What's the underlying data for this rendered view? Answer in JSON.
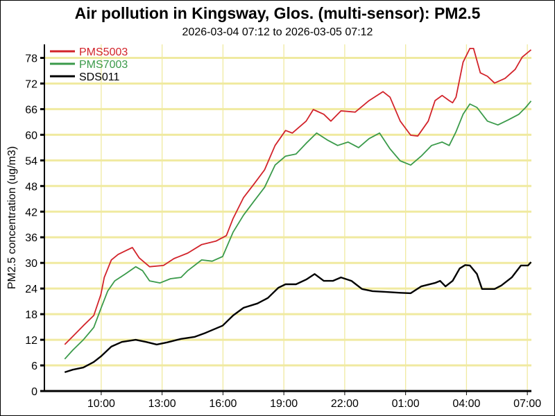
{
  "chart_data": {
    "type": "line",
    "title": "Air pollution in Kingsway, Glos. (multi-sensor): PM2.5",
    "subtitle": "2026-03-04 07:12 to 2026-03-05 07:12",
    "xlabel": "",
    "ylabel": "PM2.5 concentration (ug/m3)",
    "xlim": [
      "07:12",
      "07:12"
    ],
    "ylim": [
      0,
      81
    ],
    "x_ticks": [
      "10:00",
      "13:00",
      "16:00",
      "19:00",
      "22:00",
      "01:00",
      "04:00",
      "07:00"
    ],
    "y_ticks": [
      0,
      6,
      12,
      18,
      24,
      30,
      36,
      42,
      48,
      54,
      60,
      66,
      72,
      78
    ],
    "grid": true,
    "legend_position": "top-left",
    "series": [
      {
        "name": "PMS5003",
        "color": "#d2232a",
        "x": [
          "08:12",
          "08:36",
          "09:07",
          "09:38",
          "09:59",
          "10:09",
          "10:30",
          "10:50",
          "11:11",
          "11:32",
          "11:52",
          "12:23",
          "13:04",
          "13:35",
          "14:16",
          "14:57",
          "15:39",
          "16:10",
          "16:30",
          "17:01",
          "17:32",
          "18:03",
          "18:34",
          "19:05",
          "19:25",
          "20:06",
          "20:27",
          "20:58",
          "21:19",
          "21:49",
          "22:31",
          "23:12",
          "23:53",
          "00:14",
          "00:44",
          "01:15",
          "01:36",
          "02:07",
          "02:27",
          "02:48",
          "03:09",
          "03:19",
          "03:29",
          "03:50",
          "04:10",
          "04:21",
          "04:41",
          "05:02",
          "05:23",
          "05:54",
          "06:24",
          "06:45",
          "07:11"
        ],
        "y": [
          10.9,
          12.8,
          15.3,
          17.7,
          22.6,
          26.6,
          30.7,
          32.0,
          32.8,
          33.6,
          31.2,
          29.1,
          29.4,
          31.0,
          32.3,
          34.3,
          35.1,
          36.4,
          40.4,
          45.3,
          48.5,
          51.8,
          57.5,
          61.0,
          60.4,
          63.2,
          65.9,
          64.8,
          63.2,
          65.6,
          65.3,
          68.0,
          70.1,
          68.8,
          63.2,
          59.9,
          59.7,
          63.2,
          68.0,
          69.2,
          68.0,
          67.5,
          68.8,
          77.0,
          80.2,
          80.2,
          74.5,
          73.7,
          72.1,
          73.2,
          75.3,
          78.2,
          79.9
        ]
      },
      {
        "name": "PMS7003",
        "color": "#3a9a4a",
        "x": [
          "08:12",
          "08:36",
          "09:07",
          "09:38",
          "09:59",
          "10:19",
          "10:40",
          "11:11",
          "11:42",
          "12:02",
          "12:23",
          "12:54",
          "13:25",
          "13:56",
          "14:16",
          "14:57",
          "15:28",
          "15:59",
          "16:30",
          "17:01",
          "17:32",
          "18:03",
          "18:34",
          "19:05",
          "19:36",
          "20:06",
          "20:37",
          "21:08",
          "21:39",
          "22:10",
          "22:41",
          "23:12",
          "23:43",
          "00:14",
          "00:44",
          "01:15",
          "01:46",
          "02:17",
          "02:48",
          "03:09",
          "03:29",
          "03:50",
          "04:10",
          "04:31",
          "05:02",
          "05:33",
          "06:04",
          "06:35",
          "06:55",
          "07:11"
        ],
        "y": [
          7.5,
          9.6,
          12.0,
          14.9,
          19.3,
          23.4,
          25.8,
          27.4,
          29.1,
          28.2,
          25.8,
          25.3,
          26.3,
          26.6,
          28.2,
          30.7,
          30.4,
          31.5,
          37.2,
          41.2,
          44.5,
          47.7,
          52.9,
          55.0,
          55.5,
          58.0,
          60.4,
          58.8,
          57.5,
          58.3,
          57.0,
          59.1,
          60.4,
          56.7,
          53.9,
          52.9,
          55.0,
          57.5,
          58.3,
          57.5,
          60.7,
          64.8,
          67.2,
          66.4,
          63.2,
          62.3,
          63.5,
          64.8,
          66.4,
          67.9
        ]
      },
      {
        "name": "SDS011",
        "color": "#000000",
        "x": [
          "08:12",
          "08:36",
          "09:07",
          "09:38",
          "09:59",
          "10:30",
          "11:01",
          "11:42",
          "12:13",
          "12:44",
          "13:15",
          "13:56",
          "14:37",
          "15:08",
          "15:59",
          "16:30",
          "17:01",
          "17:42",
          "18:13",
          "18:44",
          "19:05",
          "19:36",
          "20:06",
          "20:31",
          "20:58",
          "21:25",
          "21:49",
          "22:20",
          "22:51",
          "23:22",
          "00:03",
          "00:44",
          "01:15",
          "01:46",
          "02:27",
          "02:42",
          "02:58",
          "03:19",
          "03:40",
          "03:56",
          "04:10",
          "04:31",
          "04:46",
          "05:23",
          "05:43",
          "06:14",
          "06:41",
          "07:02",
          "07:11"
        ],
        "y": [
          4.4,
          5.0,
          5.5,
          6.8,
          8.1,
          10.4,
          11.5,
          12.0,
          11.5,
          10.9,
          11.4,
          12.2,
          12.7,
          13.6,
          15.3,
          17.7,
          19.5,
          20.5,
          21.8,
          24.2,
          25.0,
          25.0,
          26.1,
          27.4,
          25.8,
          25.8,
          26.6,
          25.8,
          23.9,
          23.4,
          23.2,
          23.0,
          22.9,
          24.5,
          25.3,
          25.8,
          24.5,
          25.8,
          28.7,
          29.5,
          29.4,
          27.4,
          23.9,
          23.9,
          24.7,
          26.6,
          29.4,
          29.4,
          30.2
        ]
      }
    ]
  }
}
